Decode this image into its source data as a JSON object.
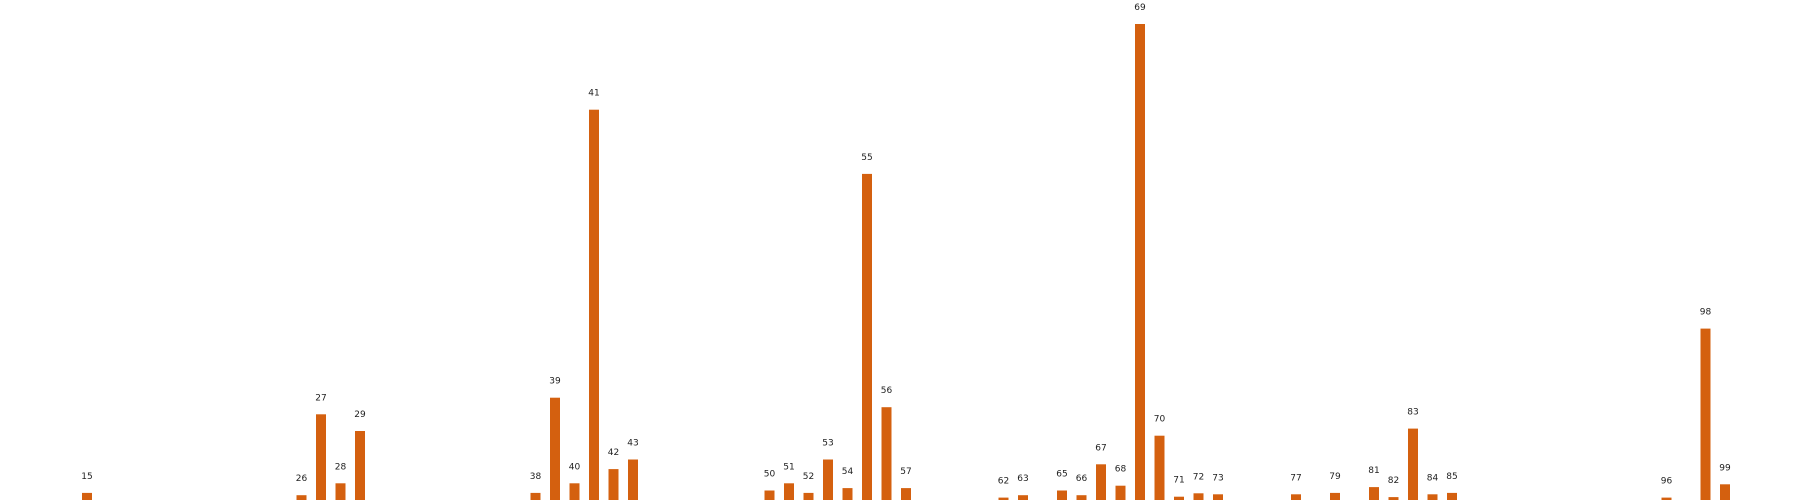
{
  "chart_data": {
    "type": "bar",
    "title": "",
    "xlabel": "",
    "ylabel": "",
    "grid": false,
    "legend": "none",
    "bar_color": "#d4600f",
    "ylim": [
      0,
      100
    ],
    "x": [
      15,
      26,
      27,
      28,
      29,
      38,
      39,
      40,
      41,
      42,
      43,
      50,
      51,
      52,
      53,
      54,
      55,
      56,
      57,
      62,
      63,
      65,
      66,
      67,
      68,
      69,
      70,
      71,
      72,
      73,
      77,
      79,
      81,
      82,
      83,
      84,
      85,
      96,
      98,
      99
    ],
    "values": [
      1.5,
      1,
      18,
      3.5,
      14.5,
      1.5,
      21.5,
      3.5,
      82,
      6.5,
      8.5,
      2,
      3.5,
      1.5,
      8.5,
      2.5,
      68.5,
      19.5,
      2.5,
      0.5,
      1,
      2,
      1,
      7.5,
      3,
      100,
      13.5,
      0.7,
      1.4,
      1.2,
      1.2,
      1.5,
      2.7,
      0.6,
      15,
      1.2,
      1.5,
      0.5,
      36,
      3.3
    ]
  }
}
